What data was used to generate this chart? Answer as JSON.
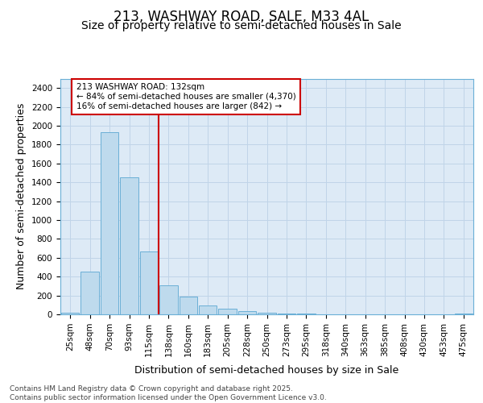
{
  "title": "213, WASHWAY ROAD, SALE, M33 4AL",
  "subtitle": "Size of property relative to semi-detached houses in Sale",
  "xlabel": "Distribution of semi-detached houses by size in Sale",
  "ylabel": "Number of semi-detached properties",
  "footnote": "Contains HM Land Registry data © Crown copyright and database right 2025.\nContains public sector information licensed under the Open Government Licence v3.0.",
  "bar_labels": [
    "25sqm",
    "48sqm",
    "70sqm",
    "93sqm",
    "115sqm",
    "138sqm",
    "160sqm",
    "183sqm",
    "205sqm",
    "228sqm",
    "250sqm",
    "273sqm",
    "295sqm",
    "318sqm",
    "340sqm",
    "363sqm",
    "385sqm",
    "408sqm",
    "430sqm",
    "453sqm",
    "475sqm"
  ],
  "bar_values": [
    20,
    450,
    1930,
    1450,
    670,
    310,
    185,
    95,
    60,
    38,
    20,
    10,
    5,
    3,
    1,
    0,
    0,
    0,
    0,
    0,
    10
  ],
  "bar_color": "#bedaed",
  "bar_edge_color": "#6aafd6",
  "vline_position": 4.5,
  "vline_color": "#cc0000",
  "annotation_text": "213 WASHWAY ROAD: 132sqm\n← 84% of semi-detached houses are smaller (4,370)\n16% of semi-detached houses are larger (842) →",
  "ylim": [
    0,
    2500
  ],
  "yticks": [
    0,
    200,
    400,
    600,
    800,
    1000,
    1200,
    1400,
    1600,
    1800,
    2000,
    2200,
    2400
  ],
  "grid_color": "#c0d4e8",
  "background_color": "#ddeaf6",
  "fig_background_color": "#ffffff",
  "title_fontsize": 12,
  "subtitle_fontsize": 10,
  "axis_label_fontsize": 9,
  "tick_fontsize": 7.5,
  "footnote_fontsize": 6.5
}
